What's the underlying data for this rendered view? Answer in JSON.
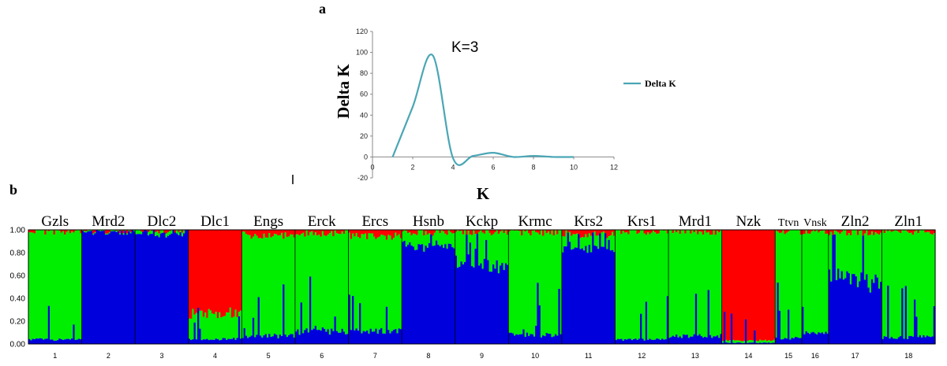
{
  "colors": {
    "line": "#4ba6b5",
    "red": "#ff0000",
    "green": "#00ee00",
    "blue": "#0000dd"
  },
  "chart_data": [
    {
      "panel": "a",
      "type": "line",
      "series": [
        {
          "name": "Delta K",
          "x": [
            1,
            2,
            3,
            4,
            5,
            6,
            7,
            8,
            9,
            10
          ],
          "y": [
            0,
            48,
            97,
            -1,
            1,
            4,
            0,
            1,
            0,
            0
          ]
        }
      ],
      "xlabel": "K",
      "ylabel": "Delta K",
      "xlim": [
        0,
        12
      ],
      "ylim": [
        -20,
        120
      ],
      "xticks": [
        "0",
        "2",
        "4",
        "6",
        "8",
        "10",
        "12"
      ],
      "yticks": [
        "-20",
        "0",
        "20",
        "40",
        "60",
        "80",
        "100",
        "120"
      ],
      "annotation": "K=3",
      "legend": "Delta K",
      "legend_position": "right"
    },
    {
      "panel": "b",
      "type": "bar",
      "stacked": true,
      "components": [
        "red",
        "green",
        "blue"
      ],
      "yticks": [
        "0.00",
        "0.20",
        "0.40",
        "0.60",
        "0.80",
        "1.00"
      ],
      "populations": [
        {
          "num": "1",
          "label": "Gzls",
          "n": 30,
          "red": 0.01,
          "green": 0.95,
          "blue": 0.04
        },
        {
          "num": "2",
          "label": "Mrd2",
          "n": 30,
          "red": 0.0,
          "green": 0.01,
          "blue": 0.99
        },
        {
          "num": "3",
          "label": "Dlc2",
          "n": 30,
          "red": 0.0,
          "green": 0.03,
          "blue": 0.97
        },
        {
          "num": "4",
          "label": "Dlc1",
          "n": 30,
          "red": 0.72,
          "green": 0.24,
          "blue": 0.04
        },
        {
          "num": "5",
          "label": "Engs",
          "n": 30,
          "red": 0.05,
          "green": 0.88,
          "blue": 0.07
        },
        {
          "num": "6",
          "label": "Erck",
          "n": 30,
          "red": 0.03,
          "green": 0.86,
          "blue": 0.11
        },
        {
          "num": "7",
          "label": "Ercs",
          "n": 30,
          "red": 0.06,
          "green": 0.83,
          "blue": 0.11
        },
        {
          "num": "8",
          "label": "Hsnb",
          "n": 30,
          "red": 0.02,
          "green": 0.12,
          "blue": 0.86
        },
        {
          "num": "9",
          "label": "Kckp",
          "n": 30,
          "red": 0.02,
          "green": 0.28,
          "blue": 0.7
        },
        {
          "num": "10",
          "label": "Krmc",
          "n": 30,
          "red": 0.02,
          "green": 0.9,
          "blue": 0.08
        },
        {
          "num": "11",
          "label": "Krs2",
          "n": 30,
          "red": 0.04,
          "green": 0.12,
          "blue": 0.84
        },
        {
          "num": "12",
          "label": "Krs1",
          "n": 30,
          "red": 0.01,
          "green": 0.95,
          "blue": 0.04
        },
        {
          "num": "13",
          "label": "Mrd1",
          "n": 30,
          "red": 0.01,
          "green": 0.92,
          "blue": 0.07
        },
        {
          "num": "14",
          "label": "Nzk",
          "n": 30,
          "red": 0.97,
          "green": 0.02,
          "blue": 0.01
        },
        {
          "num": "15",
          "label": "Ttvn",
          "n": 15,
          "red": 0.01,
          "green": 0.94,
          "blue": 0.05
        },
        {
          "num": "16",
          "label": "Vnsk",
          "n": 15,
          "red": 0.01,
          "green": 0.9,
          "blue": 0.09
        },
        {
          "num": "17",
          "label": "Zln2",
          "n": 30,
          "red": 0.02,
          "green": 0.4,
          "blue": 0.58
        },
        {
          "num": "18",
          "label": "Zln1",
          "n": 30,
          "red": 0.01,
          "green": 0.93,
          "blue": 0.06
        }
      ]
    }
  ]
}
